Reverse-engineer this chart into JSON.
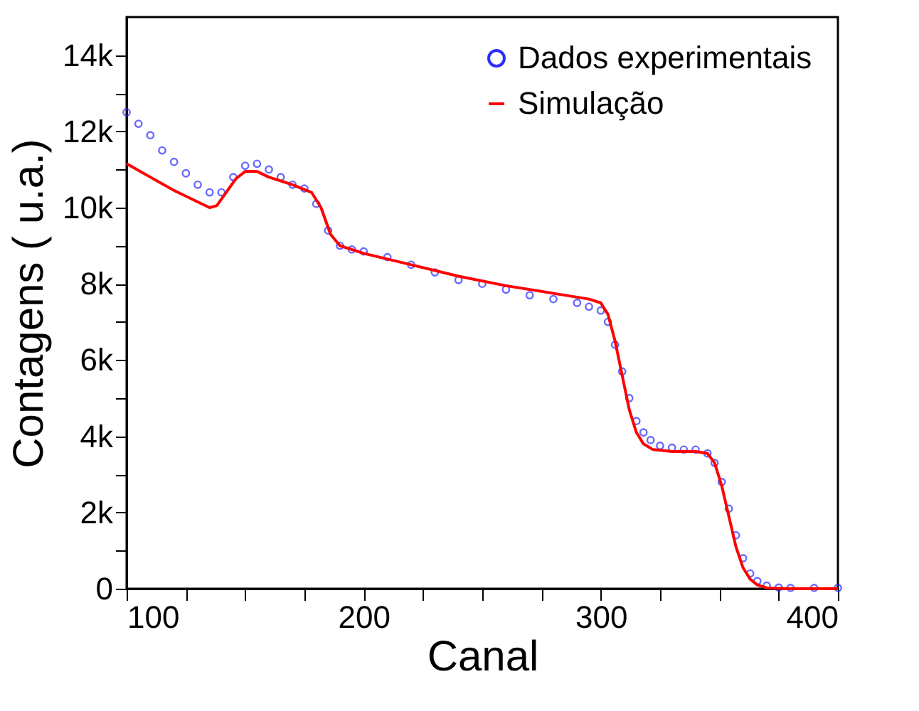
{
  "chart_data": {
    "type": "scatter",
    "xlabel": "Canal",
    "ylabel": "Contagens ( u.a.)",
    "xlim": [
      100,
      400
    ],
    "xticks": [
      100,
      {
        "value": 125,
        "label": null
      },
      {
        "value": 150,
        "label": null
      },
      {
        "value": 175,
        "label": null
      },
      200,
      {
        "value": 225,
        "label": null
      },
      {
        "value": 250,
        "label": null
      },
      {
        "value": 275,
        "label": null
      },
      300,
      {
        "value": 325,
        "label": null
      },
      {
        "value": 350,
        "label": null
      },
      {
        "value": 375,
        "label": null
      },
      400
    ],
    "ylim": [
      0,
      15000
    ],
    "yticks": [
      {
        "value": 0,
        "label": "0"
      },
      {
        "value": 1000,
        "label": null
      },
      {
        "value": 2000,
        "label": "2k"
      },
      {
        "value": 3000,
        "label": null
      },
      {
        "value": 4000,
        "label": "4k"
      },
      {
        "value": 5000,
        "label": null
      },
      {
        "value": 6000,
        "label": "6k"
      },
      {
        "value": 7000,
        "label": null
      },
      {
        "value": 8000,
        "label": "8k"
      },
      {
        "value": 9000,
        "label": null
      },
      {
        "value": 10000,
        "label": "10k"
      },
      {
        "value": 11000,
        "label": null
      },
      {
        "value": 12000,
        "label": "12k"
      },
      {
        "value": 13000,
        "label": null
      },
      {
        "value": 14000,
        "label": "14k"
      }
    ],
    "grid": false,
    "legend": "top right",
    "series": [
      {
        "name": "Dados experimentais",
        "marker": "circle",
        "color": "#2b2bff",
        "x": [
          100,
          105,
          110,
          115,
          120,
          125,
          130,
          135,
          140,
          145,
          150,
          155,
          160,
          165,
          170,
          175,
          180,
          185,
          190,
          195,
          200,
          210,
          220,
          230,
          240,
          250,
          260,
          270,
          280,
          290,
          295,
          300,
          303,
          306,
          309,
          312,
          315,
          318,
          321,
          325,
          330,
          335,
          340,
          345,
          348,
          351,
          354,
          357,
          360,
          363,
          366,
          370,
          375,
          380,
          390,
          400
        ],
        "values": [
          12500,
          12200,
          11900,
          11500,
          11200,
          10900,
          10600,
          10400,
          10400,
          10800,
          11100,
          11150,
          11000,
          10800,
          10600,
          10500,
          10100,
          9400,
          9000,
          8900,
          8850,
          8700,
          8500,
          8300,
          8100,
          8000,
          7850,
          7700,
          7600,
          7500,
          7400,
          7300,
          7000,
          6400,
          5700,
          5000,
          4400,
          4100,
          3900,
          3750,
          3700,
          3650,
          3650,
          3550,
          3300,
          2800,
          2100,
          1400,
          800,
          400,
          200,
          80,
          30,
          20,
          20,
          20
        ]
      },
      {
        "name": "Simulação",
        "type": "line",
        "color": "#ff0000",
        "x": [
          100,
          110,
          120,
          130,
          135,
          138,
          142,
          146,
          150,
          155,
          160,
          170,
          178,
          182,
          186,
          190,
          200,
          220,
          240,
          260,
          280,
          295,
          300,
          303,
          306,
          309,
          312,
          315,
          318,
          322,
          330,
          340,
          345,
          348,
          351,
          354,
          357,
          360,
          363,
          366,
          370,
          380,
          400
        ],
        "values": [
          11150,
          10800,
          10450,
          10150,
          10000,
          10050,
          10400,
          10750,
          10950,
          10950,
          10800,
          10600,
          10400,
          10000,
          9300,
          9000,
          8800,
          8500,
          8200,
          7950,
          7750,
          7600,
          7500,
          7200,
          6500,
          5600,
          4700,
          4100,
          3800,
          3650,
          3600,
          3600,
          3550,
          3300,
          2700,
          1900,
          1100,
          550,
          250,
          100,
          20,
          0,
          0
        ]
      }
    ]
  }
}
